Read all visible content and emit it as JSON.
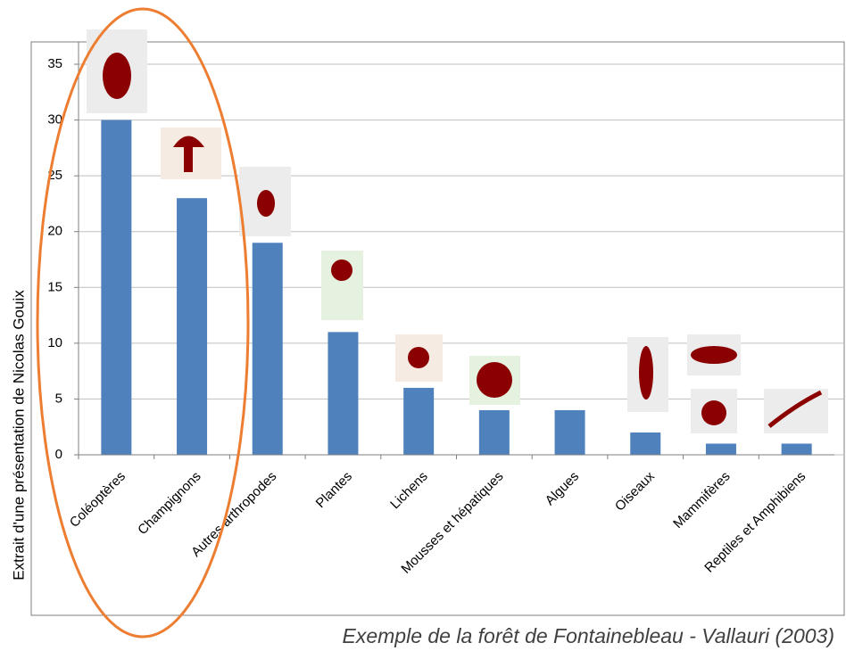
{
  "chart_data": {
    "type": "bar",
    "categories": [
      "Coléoptères",
      "Champignons",
      "Autres arthropodes",
      "Plantes",
      "Lichens",
      "Mousses et hépatiques",
      "Algues",
      "Oiseaux",
      "Mammifères",
      "Reptiles et Amphibiens"
    ],
    "values": [
      30,
      23,
      19,
      11,
      6,
      4,
      4,
      2,
      1,
      1
    ],
    "color": "#4f81bd",
    "ylim": [
      0,
      37
    ],
    "yticks": [
      0,
      5,
      10,
      15,
      20,
      25,
      30,
      35
    ],
    "grid": true,
    "side_note": "Extrait d'une présentation de Nicolas Gouix",
    "caption": "Exemple de la forêt de Fontainebleau - Vallauri (2003)"
  }
}
